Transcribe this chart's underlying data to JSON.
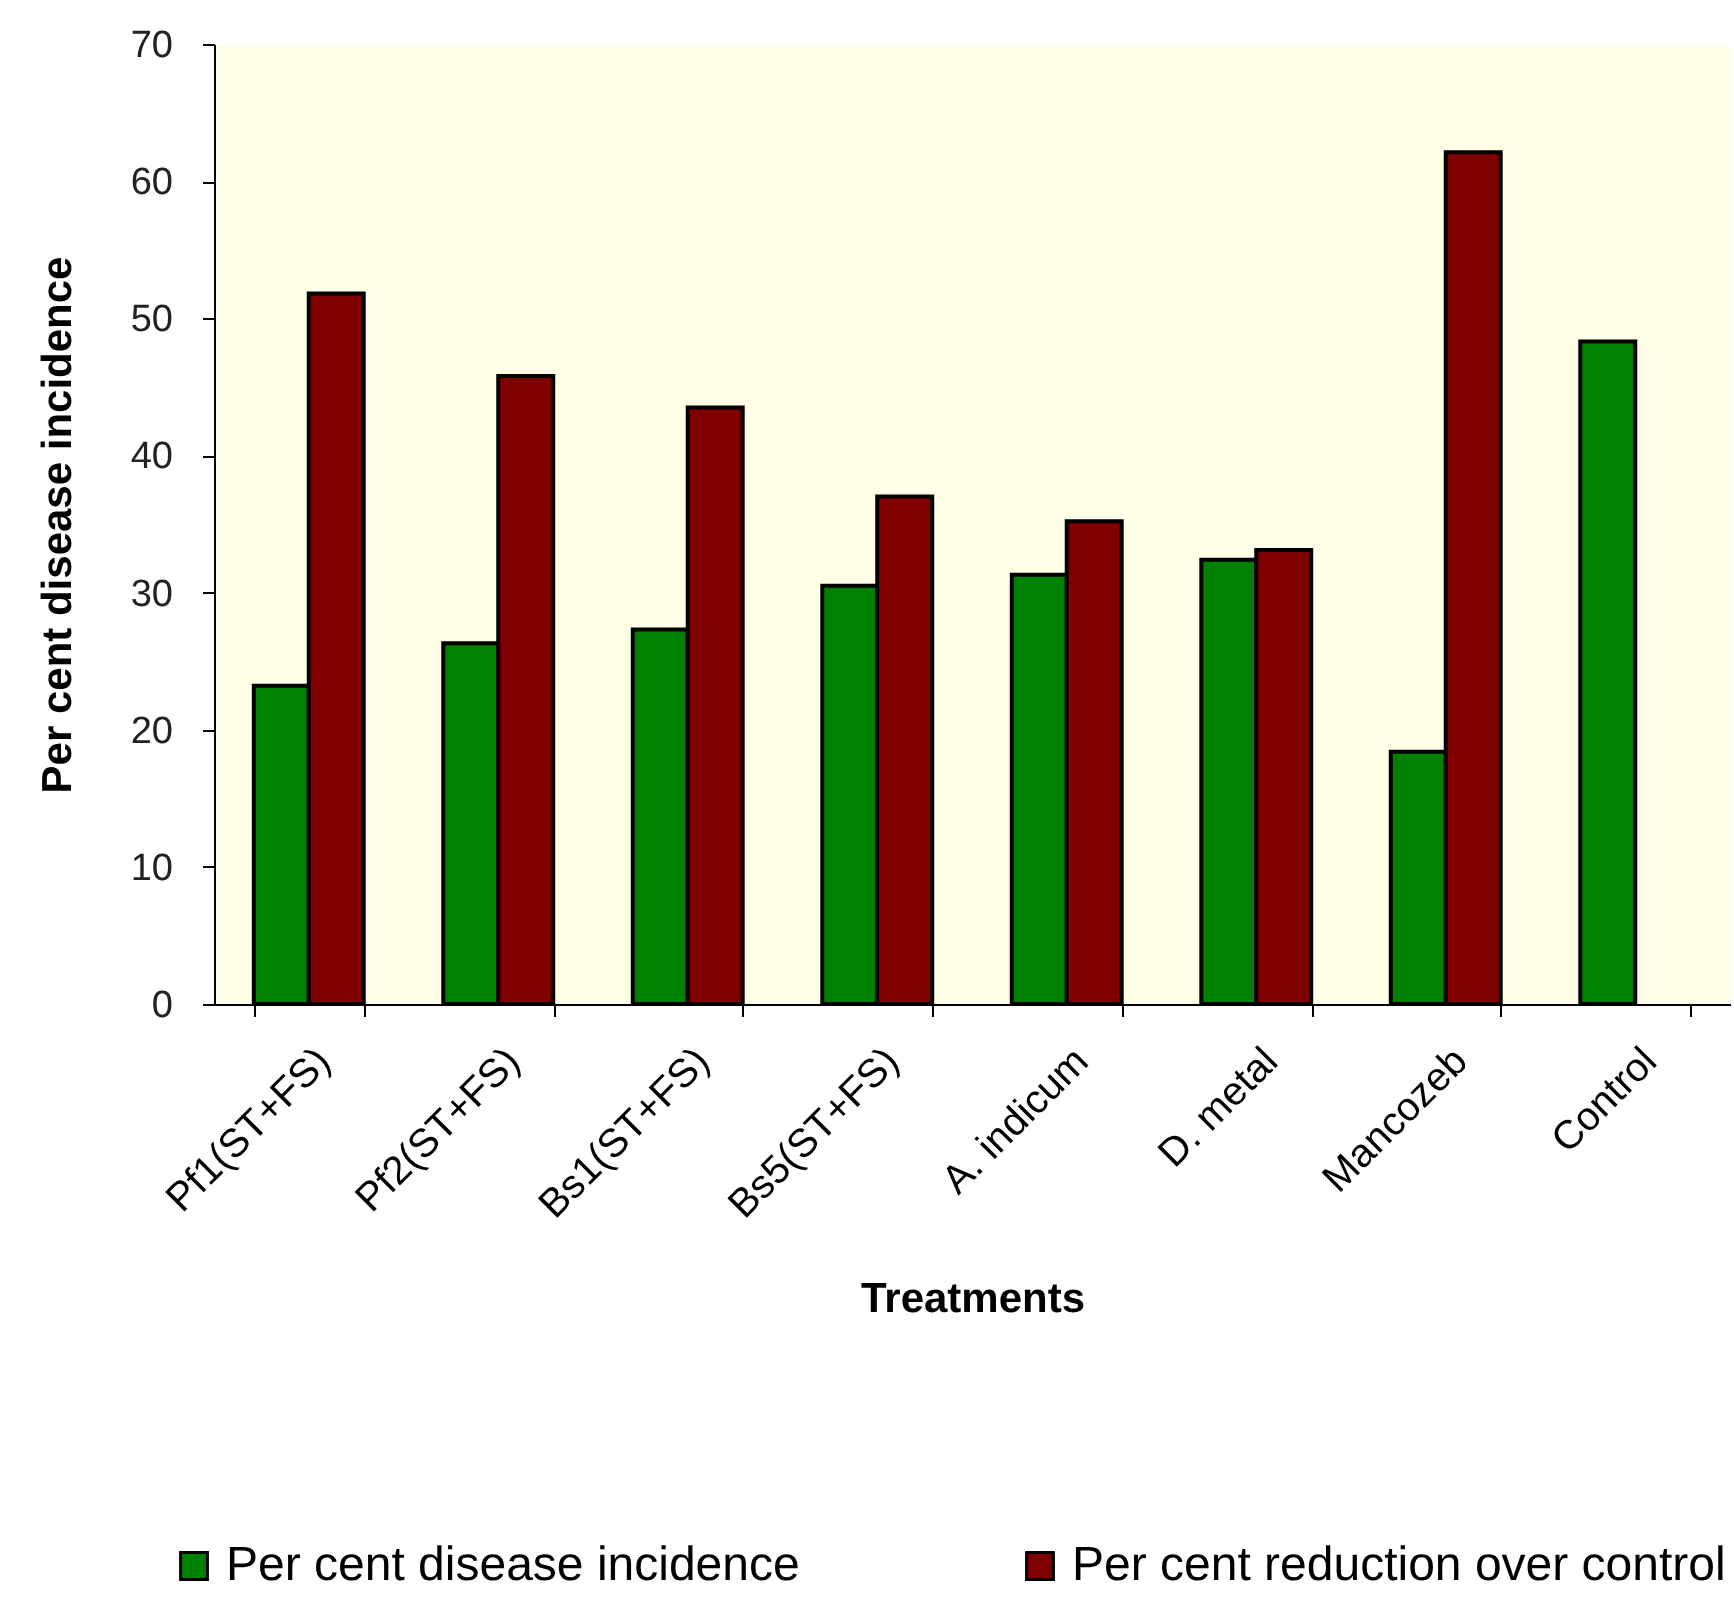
{
  "chart_data": {
    "type": "bar",
    "xlabel": "Treatments",
    "ylabel": "Per cent disease incidence",
    "categories": [
      "Pf1(ST+FS)",
      "Pf2(ST+FS)",
      "Bs1(ST+FS)",
      "Bs5(ST+FS)",
      "A. indicum",
      "D. metal",
      "Mancozeb",
      "Control"
    ],
    "series": [
      {
        "name": "Per cent disease incidence",
        "color": "#008000",
        "values": [
          23.2,
          26.3,
          27.3,
          30.5,
          31.3,
          32.4,
          18.4,
          48.3
        ]
      },
      {
        "name": "Per cent reduction over control",
        "color": "#800000",
        "values": [
          51.8,
          45.8,
          43.5,
          37.0,
          35.2,
          33.1,
          62.1,
          null
        ]
      }
    ],
    "ylim": [
      0,
      70
    ],
    "yticks": [
      0,
      10,
      20,
      30,
      40,
      50,
      60,
      70
    ],
    "grid": false,
    "legend": "bottom"
  }
}
